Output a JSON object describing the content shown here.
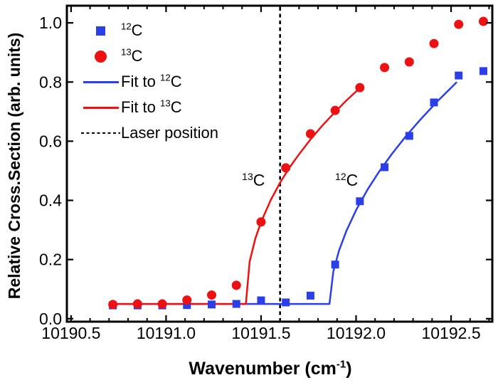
{
  "figure": {
    "bg": "#ffffff",
    "colors": {
      "c12": "#2b3fe8",
      "c13": "#ee1111",
      "axis": "#000000"
    },
    "ylabel": "Relative Cross.Section (arb. units)",
    "xlabel": {
      "pre": "Wavenumber (cm",
      "sup": "-1",
      "post": ")"
    }
  },
  "legend": {
    "items": [
      {
        "marker": "square-12c",
        "pre": "",
        "sup": "12",
        "base": "C"
      },
      {
        "marker": "circle-13c",
        "pre": "",
        "sup": "13",
        "base": "C"
      },
      {
        "marker": "line-12c",
        "pre": "Fit to ",
        "sup": "12",
        "base": "C"
      },
      {
        "marker": "line-13c",
        "pre": "Fit to ",
        "sup": "13",
        "base": "C"
      },
      {
        "marker": "dashed-laser",
        "pre": "Laser position",
        "sup": "",
        "base": ""
      }
    ]
  },
  "chart_data": {
    "type": "scatter",
    "title": "",
    "xlabel": "Wavenumber (cm-1)",
    "ylabel": "Relative Cross.Section (arb. units)",
    "xlim": [
      10190.478,
      10192.717
    ],
    "ylim": [
      -0.01,
      1.058
    ],
    "x_major_ticks": [
      10190.5,
      10191.0,
      10191.5,
      10192.0,
      10192.5
    ],
    "x_tick_labels": [
      "10190.5",
      "10191.0",
      "10191.5",
      "10192.0",
      "10192.5"
    ],
    "x_minor_step": 0.1,
    "y_major_ticks": [
      0.0,
      0.2,
      0.4,
      0.6,
      0.8,
      1.0
    ],
    "y_tick_labels": [
      "0.0",
      "0.2",
      "0.4",
      "0.6",
      "0.8",
      "1.0"
    ],
    "grid": false,
    "legend_position": "upper-left-inside",
    "laser_position_x": 10191.6,
    "series": [
      {
        "name": "12C",
        "marker": "square",
        "color": "#2b3fe8",
        "x": [
          10190.72,
          10190.85,
          10190.98,
          10191.11,
          10191.24,
          10191.37,
          10191.5,
          10191.63,
          10191.76,
          10191.89,
          10192.02,
          10192.15,
          10192.28,
          10192.41,
          10192.54,
          10192.67
        ],
        "y": [
          0.045,
          0.045,
          0.045,
          0.046,
          0.048,
          0.05,
          0.062,
          0.055,
          0.078,
          0.183,
          0.397,
          0.512,
          0.618,
          0.731,
          0.822,
          0.837
        ]
      },
      {
        "name": "13C",
        "marker": "circle",
        "color": "#ee1111",
        "x": [
          10190.72,
          10190.85,
          10190.98,
          10191.11,
          10191.24,
          10191.37,
          10191.5,
          10191.63,
          10191.76,
          10191.89,
          10192.02,
          10192.15,
          10192.28,
          10192.41,
          10192.54,
          10192.67
        ],
        "y": [
          0.048,
          0.05,
          0.05,
          0.063,
          0.08,
          0.113,
          0.327,
          0.51,
          0.625,
          0.704,
          0.781,
          0.849,
          0.868,
          0.93,
          0.995,
          1.005
        ]
      }
    ],
    "fits": [
      {
        "name": "Fit to 12C",
        "color": "#2b3fe8",
        "points": [
          [
            10190.7,
            0.05
          ],
          [
            10191.86,
            0.05
          ],
          [
            10191.88,
            0.159
          ],
          [
            10191.91,
            0.23
          ],
          [
            10191.95,
            0.298
          ],
          [
            10192.0,
            0.367
          ],
          [
            10192.06,
            0.436
          ],
          [
            10192.12,
            0.496
          ],
          [
            10192.19,
            0.558
          ],
          [
            10192.26,
            0.615
          ],
          [
            10192.34,
            0.674
          ],
          [
            10192.43,
            0.736
          ],
          [
            10192.53,
            0.8
          ]
        ]
      },
      {
        "name": "Fit to 13C",
        "color": "#ee1111",
        "points": [
          [
            10190.7,
            0.05
          ],
          [
            10191.42,
            0.05
          ],
          [
            10191.44,
            0.193
          ],
          [
            10191.47,
            0.271
          ],
          [
            10191.5,
            0.327
          ],
          [
            10191.55,
            0.4
          ],
          [
            10191.6,
            0.46
          ],
          [
            10191.65,
            0.511
          ],
          [
            10191.7,
            0.556
          ],
          [
            10191.76,
            0.606
          ],
          [
            10191.82,
            0.651
          ],
          [
            10191.89,
            0.699
          ],
          [
            10191.95,
            0.738
          ],
          [
            10192.02,
            0.78
          ]
        ]
      }
    ],
    "annotations": [
      {
        "sup": "13",
        "base": "C",
        "x": 10191.46,
        "y": 0.45
      },
      {
        "sup": "12",
        "base": "C",
        "x": 10191.95,
        "y": 0.45
      }
    ]
  }
}
